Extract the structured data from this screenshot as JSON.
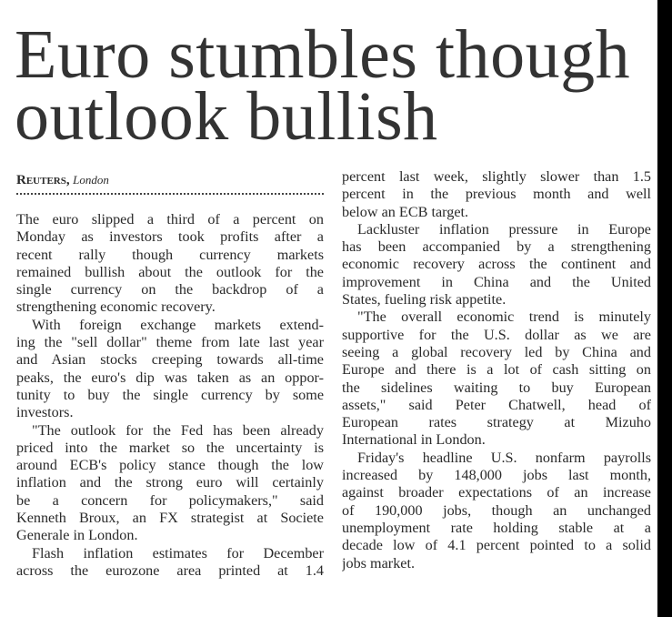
{
  "headline": [
    "Euro stumbles though",
    "outlook bullish"
  ],
  "byline": {
    "agency": "Reuters,",
    "city": "London"
  },
  "left_column": [
    {
      "indent": false,
      "lines": [
        "The euro slipped a third of a percent on",
        "Monday as investors took profits after a",
        "recent rally though currency markets",
        "remained bullish about the outlook for the",
        "single currency on the backdrop of a",
        "strengthening economic recovery."
      ]
    },
    {
      "indent": true,
      "lines": [
        "With foreign exchange markets extend-",
        "ing the \"sell dollar\" theme from late last year",
        "and Asian stocks creeping towards all-time",
        "peaks, the euro's dip was taken as an oppor-",
        "tunity to buy the single currency by some",
        "investors."
      ]
    },
    {
      "indent": true,
      "lines": [
        "\"The outlook for the Fed has been already",
        "priced into the market so the uncertainty is",
        "around ECB's policy stance though the low",
        "inflation and the strong euro will certainly",
        "be a concern for policymakers,\" said",
        "Kenneth Broux, an FX strategist at Societe",
        "Generale in London."
      ]
    },
    {
      "indent": true,
      "open": true,
      "lines": [
        "Flash inflation estimates for December",
        "across the eurozone area printed at 1.4"
      ]
    }
  ],
  "right_column": [
    {
      "indent": false,
      "lines": [
        "percent last week, slightly slower than 1.5",
        "percent in the previous month and well",
        "below an ECB target."
      ]
    },
    {
      "indent": true,
      "lines": [
        "Lackluster inflation pressure in Europe",
        "has been accompanied by a strengthening",
        "economic recovery across the continent and",
        "improvement in China and the United",
        "States, fueling risk appetite."
      ]
    },
    {
      "indent": true,
      "lines": [
        "\"The overall economic trend is minutely",
        "supportive for the U.S. dollar as we are",
        "seeing a global recovery led by China and",
        "Europe and there is a lot of cash sitting on",
        "the sidelines waiting to buy European",
        "assets,\" said Peter Chatwell, head of",
        "European rates strategy at Mizuho",
        "International in London."
      ]
    },
    {
      "indent": true,
      "lines": [
        "Friday's headline U.S. nonfarm payrolls",
        "increased by 148,000 jobs last month,",
        "against broader expectations of an increase",
        "of 190,000 jobs, though an unchanged",
        "unemployment rate holding stable at a",
        "decade low of 4.1 percent pointed to a solid",
        "jobs market."
      ]
    }
  ]
}
